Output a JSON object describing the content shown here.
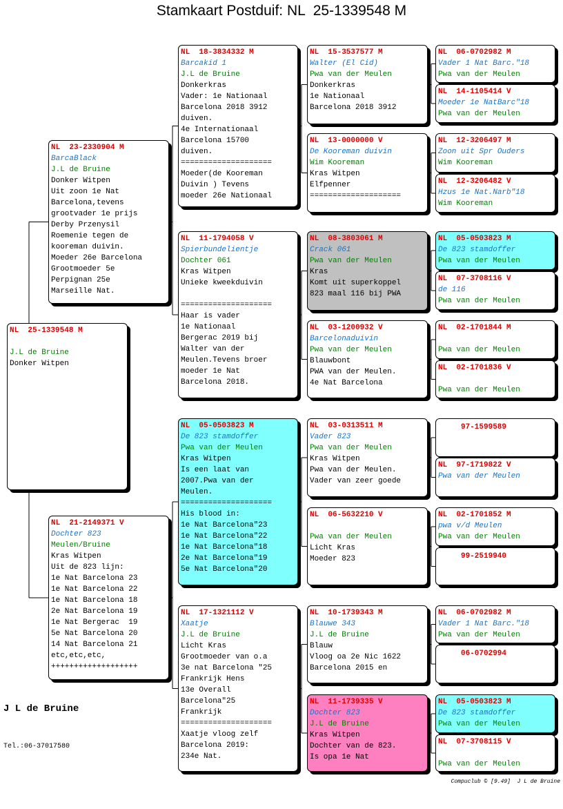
{
  "title": "Stamkaart Postduif: NL  25-1339548 M",
  "boxes": [
    {
      "ring": "NL  25-1339548 M",
      "owner": "J.L de Bruine",
      "notes": [
        "Donker Witpen"
      ]
    },
    {
      "ring": "NL  23-2330904 M",
      "name": "BarcaBlack",
      "owner": "J.L de Bruine",
      "notes": [
        "Donker Witpen",
        "Uit zoon 1e Nat",
        "Barcelona,tevens",
        "grootvader 1e prijs",
        "Derby Przenysil",
        "Roemenie tegen de",
        "kooreman duivin.",
        "Moeder 26e Barcelona",
        "Grootmoeder 5e",
        "Perpignan 25e",
        "Marseille Nat."
      ]
    },
    {
      "ring": "NL  21-2149371 V",
      "name": "Dochter 823",
      "owner": "Meulen/Bruine",
      "notes": [
        "Kras Witpen",
        "Uit de 823 lijn:",
        "1e Nat Barcelona 23",
        "1e Nat Barcelona 22",
        "1e Nat Barcelona 18",
        "2e Nat Barcelona 19",
        "1e Nat Bergerac  19",
        "5e Nat Barcelona 20",
        "14 Nat Barcelona 21",
        "etc,etc,etc,",
        "+++++++++++++++++++"
      ]
    },
    {
      "ring": "NL  18-3834332 M",
      "name": "Barcakid 1",
      "owner": "J.L de Bruine",
      "notes": [
        "Donkerkras",
        "Vader: 1e Nationaal",
        "Barcelona 2018 3912",
        "duiven.",
        "4e Internationaal",
        "Barcelona 15700",
        "duiven.",
        "====================",
        "Moeder(de Kooreman",
        "Duivin ) Tevens",
        "moeder 26e Nationaal"
      ]
    },
    {
      "ring": "NL  11-1794058 V",
      "name": "Spierbundelientje",
      "owner": "Dochter 061",
      "notes": [
        "Kras Witpen",
        "Unieke kweekduivin",
        "====================",
        "Haar is vader",
        "1e Nationaal",
        "Bergerac 2019 bij",
        "Walter van der",
        "Meulen.Tevens broer",
        "moeder 1e Nat",
        "Barcelona 2018."
      ]
    },
    {
      "ring": "NL  05-0503823 M",
      "name": "De 823 stamdoffer",
      "owner": "Pwa van der Meulen",
      "background": "#80ffff",
      "notes": [
        "Kras Witpen",
        "Is een laat van",
        "2007.Pwa van der",
        "Meulen.",
        "====================",
        "His blood in:",
        "1e Nat Barcelona\"23",
        "1e Nat Barcelona\"22",
        "1e Nat Barcelona\"18",
        "2e Nat Barcelona\"19",
        "5e Nat Barcelona\"20"
      ]
    },
    {
      "ring": "NL  17-1321112 V",
      "name": "Xaatje",
      "owner": "J.L de Bruine",
      "notes": [
        "Licht Kras",
        "Grootmoeder van o.a",
        "3e nat Barcelona \"25",
        "Frankrijk Hens",
        "13e Overall",
        "Barcelona\"25",
        "Frankrijk",
        "====================",
        "Xaatje vloog zelf",
        "Barcelona 2019:",
        "234e Nat."
      ]
    },
    {
      "ring": "NL  15-3537577 M",
      "name": "Walter (El Cid)",
      "owner": "Pwa van der Meulen",
      "notes": [
        "Donkerkras",
        "1e Nationaal",
        "Barcelona 2018 3912"
      ]
    },
    {
      "ring": "NL  13-0000000 V",
      "name": "De Kooreman duivin",
      "owner": "Wim Kooreman",
      "notes": [
        "Kras Witpen",
        "Elfpenner",
        "===================="
      ]
    },
    {
      "ring": "NL  08-3803061 M",
      "name": "Crack 061",
      "owner": "Pwa van der Meulen",
      "background": "#c0c0c0",
      "notes": [
        "Kras",
        "Komt uit superkoppel",
        "823 maal 116 bij PWA"
      ]
    },
    {
      "ring": "NL  03-1200932 V",
      "name": "Barcelonaduivin",
      "owner": "Pwa van der Meulen",
      "notes": [
        "Blauwbont",
        "PWA van der Meulen.",
        "4e Nat Barcelona"
      ]
    },
    {
      "ring": "NL  03-0313511 M",
      "name": "Vader 823",
      "owner": "Pwa van der Meulen",
      "notes": [
        "Kras Witpen",
        "Pwa van der Meulen.",
        "Vader van zeer goede"
      ]
    },
    {
      "ring": "NL  06-5632210 V",
      "owner": "Pwa van der Meulen",
      "notes": [
        "Licht Kras",
        "Moeder 823"
      ]
    },
    {
      "ring": "NL  10-1739343 M",
      "name": "Blauwe 343",
      "owner": "J.L de Bruine",
      "notes": [
        "Blauw",
        "Vloog oa 2e Nic 1622",
        "Barcelona 2015 en"
      ]
    },
    {
      "ring": "NL  11-1739335 V",
      "name": "Dochter 823",
      "owner": "J.L de Bruine",
      "background": "#ff80c0",
      "notes": [
        "Kras Witpen",
        "Dochter van de 823.",
        "Is opa 1e Nat"
      ]
    },
    {
      "ring": "NL  06-0702982 M",
      "name": "Vader 1 Nat Barc.\"18",
      "owner": "Pwa van der Meulen"
    },
    {
      "ring": "NL  14-1105414 V",
      "name": "Moeder 1e NatBarc\"18",
      "owner": "Pwa van der Meulen"
    },
    {
      "ring": "NL  12-3206497 M",
      "name": "Zoon uit Spr Ouders",
      "owner": "Wim Kooreman"
    },
    {
      "ring": "NL  12-3206482 V",
      "name": "Hzus 1e Nat.Narb\"18",
      "owner": "Wim Kooreman"
    },
    {
      "ring": "NL  05-0503823 M",
      "name": "De 823 stamdoffer",
      "owner": "Pwa van der Meulen",
      "background": "#80ffff"
    },
    {
      "ring": "NL  07-3708116 V",
      "name": "de 116",
      "owner": "Pwa van der Meulen"
    },
    {
      "ring": "NL  02-1701844 M",
      "owner": "Pwa van der Meulen"
    },
    {
      "ring": "NL  02-1701836 V",
      "owner": "Pwa van der Meulen"
    },
    {
      "ring": "97-1599589"
    },
    {
      "ring": "NL  97-1719822 V",
      "name": "Pwa van der Meulen"
    },
    {
      "ring": "NL  02-1701852 M",
      "name": "pwa v/d Meulen",
      "owner": "Pwa van der Meulen"
    },
    {
      "ring": "99-2519940"
    },
    {
      "ring": "NL  06-0702982 M",
      "name": "Vader 1 Nat Barc.\"18",
      "owner": "Pwa van der Meulen"
    },
    {
      "ring": "06-0702994"
    },
    {
      "ring": "NL  05-0503823 M",
      "name": "De 823 stamdoffer",
      "owner": "Pwa van der Meulen",
      "background": "#80ffff"
    },
    {
      "ring": "NL  07-3708115 V",
      "owner": "Pwa van der Meulen"
    }
  ],
  "footer": {
    "breeder": "J L de Bruine",
    "phone": "Tel.:06-37017580",
    "credit": "Compuclub © [9.49]  J L de Bruine"
  }
}
